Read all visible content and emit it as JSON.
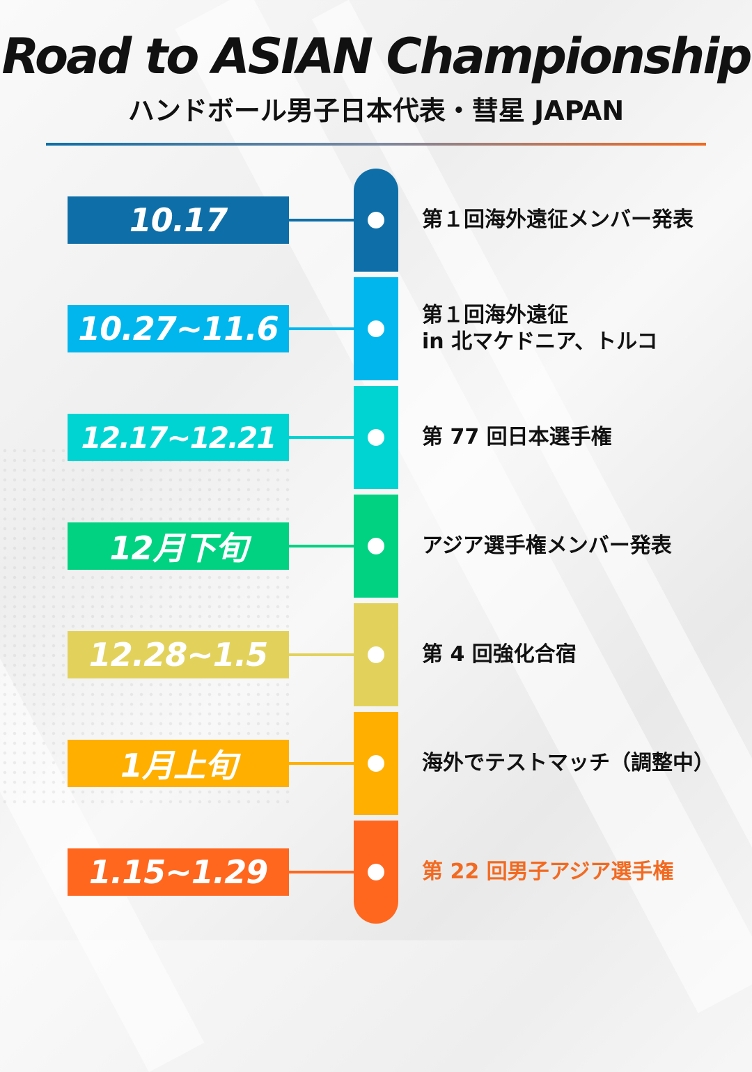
{
  "header": {
    "title": "Road to ASIAN Championship",
    "subtitle": "ハンドボール男子日本代表・彗星 JAPAN"
  },
  "colors": {
    "divider_start": "#0e6fa8",
    "divider_end": "#f26a21",
    "highlight_text": "#f26a21"
  },
  "timeline": [
    {
      "date": "10.17",
      "event_lines": [
        "第１回海外遠征メンバー発表"
      ],
      "color": "#0e6fa8",
      "highlight": false
    },
    {
      "date": "10.27~11.6",
      "event_lines": [
        "第１回海外遠征",
        "in 北マケドニア、トルコ"
      ],
      "color": "#00b6ec",
      "highlight": false
    },
    {
      "date": "12.17~12.21",
      "event_lines": [
        "第 77 回日本選手権"
      ],
      "color": "#00d4d2",
      "highlight": false
    },
    {
      "date": "12月下旬",
      "event_lines": [
        "アジア選手権メンバー発表"
      ],
      "color": "#00d282",
      "highlight": false
    },
    {
      "date": "12.28~1.5",
      "event_lines": [
        "第 4 回強化合宿"
      ],
      "color": "#e2d25c",
      "highlight": false
    },
    {
      "date": "1月上旬",
      "event_lines": [
        "海外でテストマッチ（調整中）"
      ],
      "color": "#ffaf00",
      "highlight": false
    },
    {
      "date": "1.15~1.29",
      "event_lines": [
        "第 22 回男子アジア選手権"
      ],
      "color": "#ff671f",
      "highlight": true
    }
  ]
}
